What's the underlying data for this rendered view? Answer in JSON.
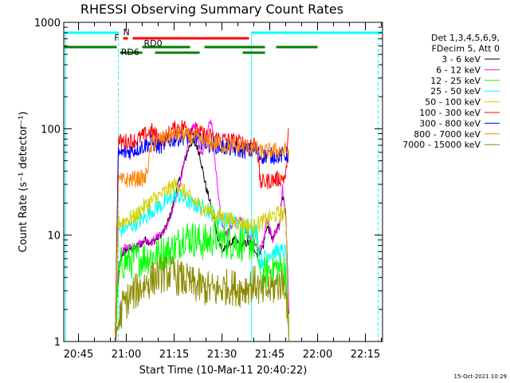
{
  "chart_data": {
    "type": "line",
    "title": "RHESSI Observing Summary Count Rates",
    "xlabel": "Start Time (10-Mar-11 20:40:22)",
    "ylabel": "Count Rate (s⁻¹ detector⁻¹)",
    "x_ticks": [
      "20:45",
      "21:00",
      "21:15",
      "21:30",
      "21:45",
      "22:00",
      "22:15"
    ],
    "y_ticks": [
      "1",
      "10",
      "100",
      "1000"
    ],
    "ylim": [
      1,
      1000
    ],
    "y_scale": "log",
    "xlim_minutes": [
      40.37,
      140.37
    ],
    "footer": "15-Oct-2021 10:29",
    "legend_header": [
      "Det 1,3,4,5,6,9,",
      "FDecim 5, Att 0"
    ],
    "legend_placement": "right",
    "flags": {
      "night_cyan": [
        [
          40.37,
          57.5
        ],
        [
          99.3,
          140.37
        ]
      ],
      "flare_red": {
        "label": "F",
        "segments": [
          [
            59.0,
            60.5
          ],
          [
            62.0,
            98.5
          ]
        ]
      },
      "rd0_label": "RD0",
      "rd6_label": "RD6",
      "rd0_green": [
        [
          40.37,
          57.0
        ],
        [
          65.0,
          80.0
        ],
        [
          84.5,
          103.5
        ],
        [
          107.0,
          120.0
        ]
      ],
      "rd6_green": [
        [
          58.0,
          65.0
        ],
        [
          69.0,
          83.0
        ],
        [
          96.5,
          103.5
        ]
      ],
      "n_label": "N"
    },
    "series": [
      {
        "name": "3 - 6 keV",
        "color": "#000000",
        "points": [
          [
            56.5,
            1.2
          ],
          [
            57.5,
            3.8
          ],
          [
            58.5,
            6.5
          ],
          [
            60,
            7.3
          ],
          [
            62,
            7.5
          ],
          [
            64,
            8.0
          ],
          [
            66,
            9.0
          ],
          [
            68,
            8.5
          ],
          [
            70,
            9.5
          ],
          [
            72,
            11
          ],
          [
            74,
            16
          ],
          [
            76,
            28
          ],
          [
            78,
            46
          ],
          [
            80,
            72
          ],
          [
            81,
            75
          ],
          [
            82,
            70
          ],
          [
            83,
            58
          ],
          [
            84,
            40
          ],
          [
            85,
            28
          ],
          [
            86,
            22
          ],
          [
            87,
            16
          ],
          [
            88,
            12
          ],
          [
            89,
            9
          ],
          [
            90,
            7
          ],
          [
            92,
            8
          ],
          [
            94,
            9
          ],
          [
            96,
            8
          ],
          [
            98,
            8.5
          ],
          [
            100,
            8
          ],
          [
            101,
            6.5
          ],
          [
            102,
            7.2
          ],
          [
            103,
            8
          ],
          [
            104,
            12
          ],
          [
            105,
            11
          ],
          [
            106,
            9
          ],
          [
            107,
            11
          ],
          [
            108,
            13
          ],
          [
            109,
            25
          ],
          [
            110,
            15
          ],
          [
            111,
            1.8
          ]
        ]
      },
      {
        "name": "6 - 12 keV",
        "color": "#ff00ff",
        "points": [
          [
            56.5,
            1.2
          ],
          [
            57.5,
            5
          ],
          [
            58.5,
            6.8
          ],
          [
            60,
            7.8
          ],
          [
            62,
            7.6
          ],
          [
            64,
            8.3
          ],
          [
            66,
            9.0
          ],
          [
            68,
            8.6
          ],
          [
            70,
            9.8
          ],
          [
            72,
            11
          ],
          [
            74,
            15
          ],
          [
            76,
            24
          ],
          [
            78,
            46
          ],
          [
            80,
            90
          ],
          [
            81,
            110
          ],
          [
            82,
            105
          ],
          [
            83,
            65
          ],
          [
            84,
            60
          ],
          [
            85,
            75
          ],
          [
            86,
            125
          ],
          [
            87,
            100
          ],
          [
            88,
            42
          ],
          [
            89,
            22
          ],
          [
            90,
            14
          ],
          [
            91,
            10
          ],
          [
            92,
            11
          ],
          [
            94,
            13
          ],
          [
            96,
            14
          ],
          [
            98,
            10
          ],
          [
            100,
            9
          ],
          [
            101,
            7
          ],
          [
            102,
            7.5
          ],
          [
            103,
            8.5
          ],
          [
            104,
            14
          ],
          [
            105,
            11
          ],
          [
            106,
            9
          ],
          [
            107,
            11
          ],
          [
            108,
            12
          ],
          [
            109,
            28
          ],
          [
            110,
            14
          ],
          [
            111,
            2.0
          ]
        ]
      },
      {
        "name": "12 - 25 keV",
        "color": "#00ff00",
        "points": [
          [
            56.5,
            1.0
          ],
          [
            57.5,
            4.0
          ],
          [
            58.5,
            5.5
          ],
          [
            62,
            5.8
          ],
          [
            66,
            6.2
          ],
          [
            70,
            6.5
          ],
          [
            74,
            7.2
          ],
          [
            76,
            8
          ],
          [
            78,
            10
          ],
          [
            80,
            9.5
          ],
          [
            82,
            9
          ],
          [
            84,
            8.5
          ],
          [
            86,
            8.8
          ],
          [
            88,
            9.8
          ],
          [
            90,
            9.0
          ],
          [
            94,
            8.5
          ],
          [
            98,
            8.5
          ],
          [
            101,
            8.2
          ],
          [
            102,
            3.5
          ],
          [
            104,
            4.5
          ],
          [
            106,
            5.0
          ],
          [
            108,
            4.8
          ],
          [
            110,
            4.8
          ],
          [
            111,
            1.1
          ]
        ]
      },
      {
        "name": "25 - 50 keV",
        "color": "#00ffff",
        "points": [
          [
            56.5,
            1.0
          ],
          [
            57.5,
            10.5
          ],
          [
            59,
            11.5
          ],
          [
            62,
            12.5
          ],
          [
            65,
            14
          ],
          [
            68,
            17
          ],
          [
            71,
            19
          ],
          [
            74,
            22
          ],
          [
            76,
            24
          ],
          [
            78,
            22
          ],
          [
            80,
            20
          ],
          [
            82,
            19
          ],
          [
            84,
            18
          ],
          [
            86,
            17
          ],
          [
            88,
            15
          ],
          [
            90,
            14
          ],
          [
            92,
            14
          ],
          [
            94,
            13
          ],
          [
            96,
            12.5
          ],
          [
            98,
            12
          ],
          [
            100,
            11
          ],
          [
            101,
            11
          ],
          [
            102,
            5.5
          ],
          [
            104,
            6.5
          ],
          [
            106,
            7
          ],
          [
            108,
            7
          ],
          [
            110,
            7
          ],
          [
            111,
            1.1
          ]
        ]
      },
      {
        "name": "50 - 100 keV",
        "color": "#d2d200",
        "points": [
          [
            56.5,
            1.0
          ],
          [
            57.5,
            13
          ],
          [
            60,
            14
          ],
          [
            63,
            15
          ],
          [
            65,
            18
          ],
          [
            68,
            21
          ],
          [
            71,
            24
          ],
          [
            74,
            28
          ],
          [
            76,
            30
          ],
          [
            78,
            26
          ],
          [
            80,
            22
          ],
          [
            82,
            20
          ],
          [
            84,
            18
          ],
          [
            86,
            17
          ],
          [
            88,
            15
          ],
          [
            90,
            15
          ],
          [
            92,
            14
          ],
          [
            94,
            13.5
          ],
          [
            96,
            13
          ],
          [
            98,
            12.5
          ],
          [
            100,
            12
          ],
          [
            101,
            12.5
          ],
          [
            102,
            13
          ],
          [
            104,
            14
          ],
          [
            106,
            15
          ],
          [
            108,
            16
          ],
          [
            110,
            15.5
          ],
          [
            111,
            1.2
          ]
        ]
      },
      {
        "name": "100 - 300 keV",
        "color": "#ff0000",
        "points": [
          [
            56.5,
            1.0
          ],
          [
            57.5,
            75
          ],
          [
            60,
            76
          ],
          [
            63,
            78
          ],
          [
            66,
            88
          ],
          [
            68,
            95
          ],
          [
            70,
            82
          ],
          [
            72,
            80
          ],
          [
            74,
            96
          ],
          [
            76,
            102
          ],
          [
            78,
            105
          ],
          [
            80,
            100
          ],
          [
            82,
            95
          ],
          [
            84,
            88
          ],
          [
            86,
            85
          ],
          [
            88,
            82
          ],
          [
            90,
            80
          ],
          [
            92,
            78
          ],
          [
            94,
            76
          ],
          [
            96,
            74
          ],
          [
            98,
            73
          ],
          [
            101,
            72
          ],
          [
            102,
            31
          ],
          [
            104,
            32
          ],
          [
            106,
            33
          ],
          [
            108,
            34
          ],
          [
            110,
            35
          ],
          [
            111,
            100
          ]
        ]
      },
      {
        "name": "300 - 800 keV",
        "color": "#0000ff",
        "points": [
          [
            56.5,
            1.0
          ],
          [
            57.5,
            58
          ],
          [
            60,
            60
          ],
          [
            63,
            64
          ],
          [
            66,
            70
          ],
          [
            68,
            75
          ],
          [
            70,
            67
          ],
          [
            72,
            72
          ],
          [
            74,
            78
          ],
          [
            76,
            82
          ],
          [
            78,
            84
          ],
          [
            80,
            83
          ],
          [
            82,
            80
          ],
          [
            84,
            75
          ],
          [
            86,
            72
          ],
          [
            88,
            70
          ],
          [
            90,
            67
          ],
          [
            92,
            66
          ],
          [
            94,
            64
          ],
          [
            96,
            63
          ],
          [
            98,
            62
          ],
          [
            101,
            62
          ],
          [
            102,
            55
          ],
          [
            104,
            56
          ],
          [
            106,
            56
          ],
          [
            108,
            56
          ],
          [
            110,
            57
          ],
          [
            111,
            57
          ]
        ]
      },
      {
        "name": "800 - 7000 keV",
        "color": "#ff8000",
        "points": [
          [
            56.5,
            1.0
          ],
          [
            57.5,
            32
          ],
          [
            60,
            33
          ],
          [
            63,
            34
          ],
          [
            66,
            34
          ],
          [
            68,
            72
          ],
          [
            70,
            78
          ],
          [
            72,
            82
          ],
          [
            74,
            86
          ],
          [
            76,
            88
          ],
          [
            78,
            87
          ],
          [
            80,
            84
          ],
          [
            82,
            80
          ],
          [
            84,
            77
          ],
          [
            86,
            74
          ],
          [
            88,
            72
          ],
          [
            90,
            70
          ],
          [
            92,
            69
          ],
          [
            94,
            68
          ],
          [
            96,
            67
          ],
          [
            98,
            66
          ],
          [
            101,
            65
          ],
          [
            102,
            60
          ],
          [
            104,
            61
          ],
          [
            106,
            62
          ],
          [
            108,
            62
          ],
          [
            110,
            62
          ],
          [
            111,
            62
          ]
        ]
      },
      {
        "name": "7000 - 15000 keV",
        "color": "#8c8c00",
        "points": [
          [
            56.5,
            1.0
          ],
          [
            57.5,
            1.5
          ],
          [
            59,
            2.2
          ],
          [
            62,
            2.8
          ],
          [
            66,
            3.5
          ],
          [
            70,
            4.2
          ],
          [
            74,
            4.4
          ],
          [
            76,
            4.0
          ],
          [
            78,
            3.8
          ],
          [
            80,
            3.5
          ],
          [
            84,
            3.2
          ],
          [
            88,
            3.0
          ],
          [
            92,
            3.3
          ],
          [
            96,
            3.1
          ],
          [
            100,
            3.5
          ],
          [
            101,
            3.5
          ],
          [
            102,
            2.8
          ],
          [
            104,
            3.0
          ],
          [
            106,
            3.2
          ],
          [
            108,
            3.5
          ],
          [
            110,
            3.6
          ],
          [
            111,
            1.0
          ]
        ]
      }
    ]
  }
}
